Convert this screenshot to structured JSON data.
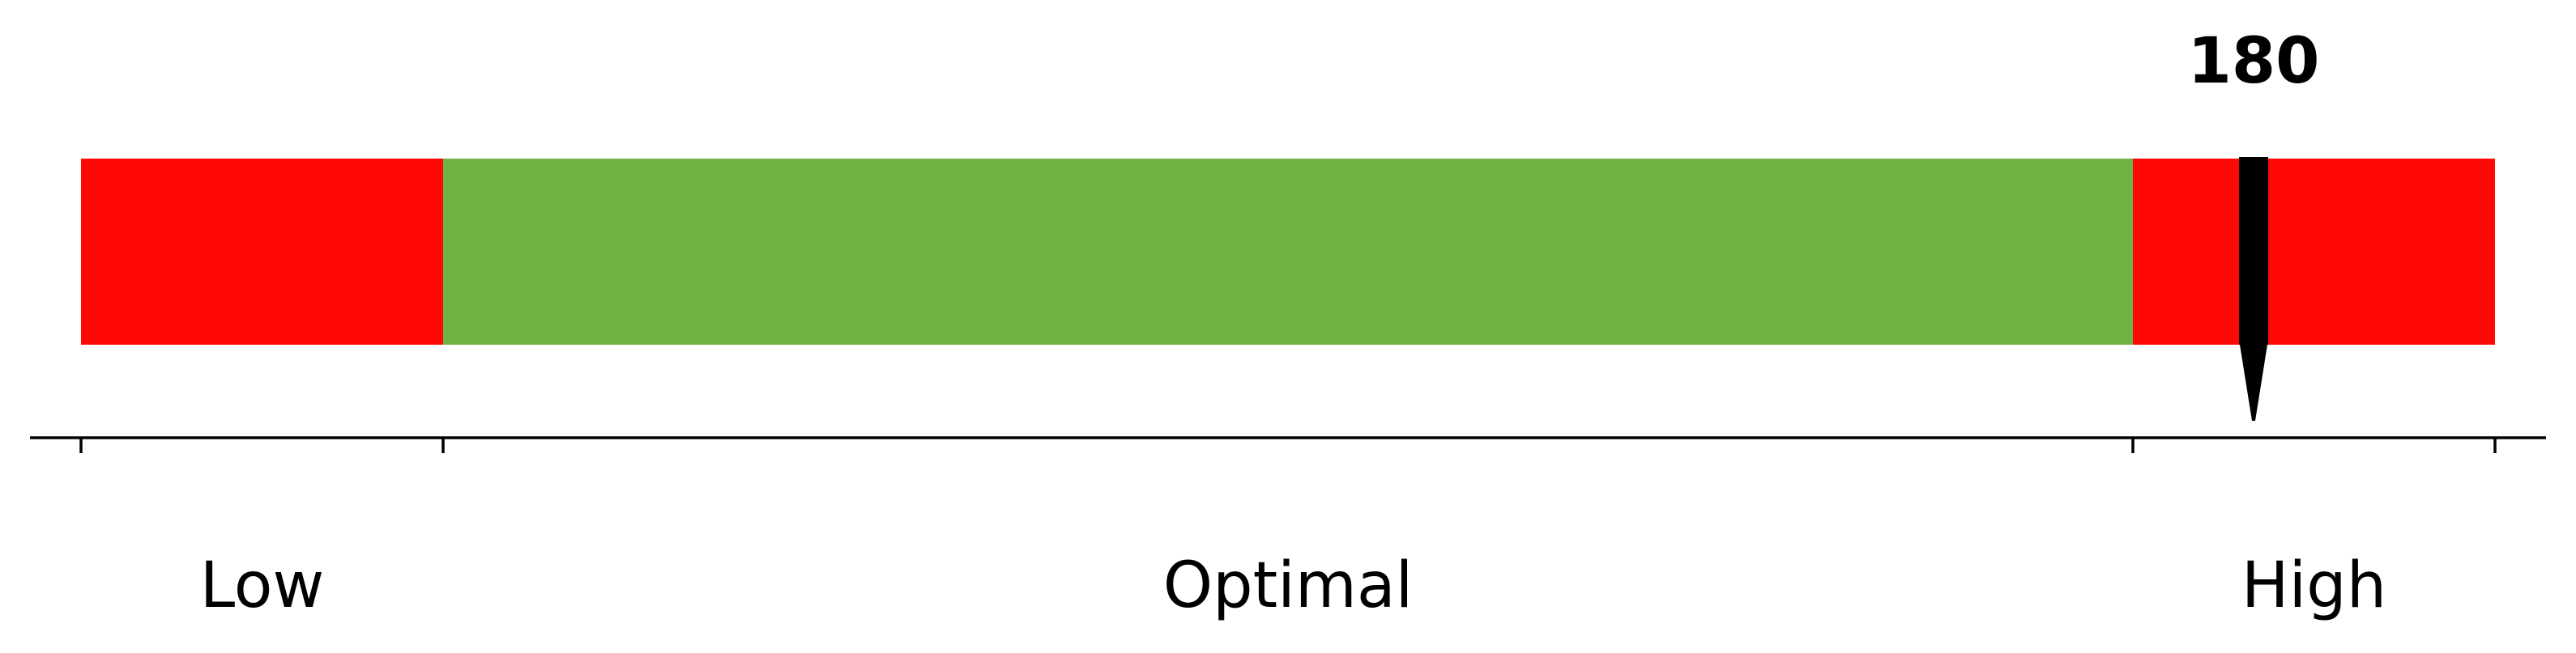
{
  "chart_data": {
    "type": "bullet-gauge",
    "xlim": [
      0,
      200
    ],
    "bands": [
      {
        "label": "Low",
        "start": 0,
        "end": 30,
        "color": "#ff0707"
      },
      {
        "label": "Optimal",
        "start": 30,
        "end": 170,
        "color": "#72b244"
      },
      {
        "label": "High",
        "start": 170,
        "end": 200,
        "color": "#ff0707"
      }
    ],
    "ticks": [
      0,
      30,
      170,
      200
    ],
    "tick_labels_shown": false,
    "marker": {
      "value": 180,
      "label": "180",
      "color": "#000000"
    }
  }
}
